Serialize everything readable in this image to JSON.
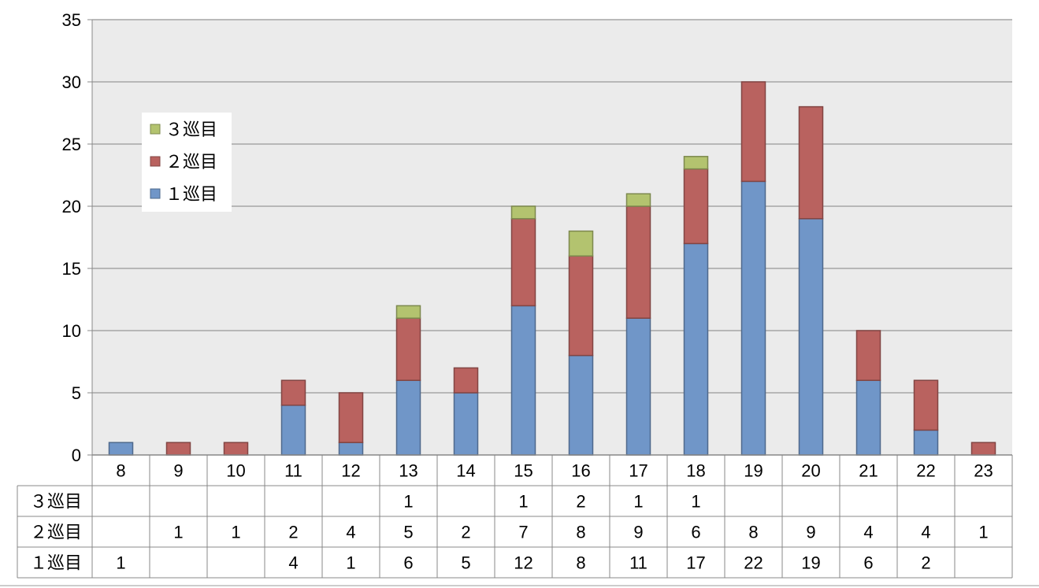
{
  "chart_data": {
    "type": "bar",
    "stacked": true,
    "categories": [
      "8",
      "9",
      "10",
      "11",
      "12",
      "13",
      "14",
      "15",
      "16",
      "17",
      "18",
      "19",
      "20",
      "21",
      "22",
      "23"
    ],
    "series": [
      {
        "name": "１巡目",
        "color": "#7096c8",
        "values": [
          1,
          0,
          0,
          4,
          1,
          6,
          5,
          12,
          8,
          11,
          17,
          22,
          19,
          6,
          2,
          0
        ],
        "table_labels": [
          "1",
          "",
          "",
          "4",
          "1",
          "6",
          "5",
          "12",
          "8",
          "11",
          "17",
          "22",
          "19",
          "6",
          "2",
          ""
        ]
      },
      {
        "name": "２巡目",
        "color": "#b9625f",
        "values": [
          0,
          1,
          1,
          2,
          4,
          5,
          2,
          7,
          8,
          9,
          6,
          8,
          9,
          4,
          4,
          1
        ],
        "table_labels": [
          "",
          "1",
          "1",
          "2",
          "4",
          "5",
          "2",
          "7",
          "8",
          "9",
          "6",
          "8",
          "9",
          "4",
          "4",
          "1"
        ]
      },
      {
        "name": "３巡目",
        "color": "#b3c36f",
        "values": [
          0,
          0,
          0,
          0,
          0,
          1,
          0,
          1,
          2,
          1,
          1,
          0,
          0,
          0,
          0,
          0
        ],
        "table_labels": [
          "",
          "",
          "",
          "",
          "",
          "1",
          "",
          "1",
          "2",
          "1",
          "1",
          "",
          "",
          "",
          "",
          ""
        ]
      }
    ],
    "ylim": [
      0,
      35
    ],
    "yticks": [
      "0",
      "5",
      "10",
      "15",
      "20",
      "25",
      "30",
      "35"
    ],
    "grid": true,
    "legend": "upper-left inside plot",
    "data_table": true
  }
}
